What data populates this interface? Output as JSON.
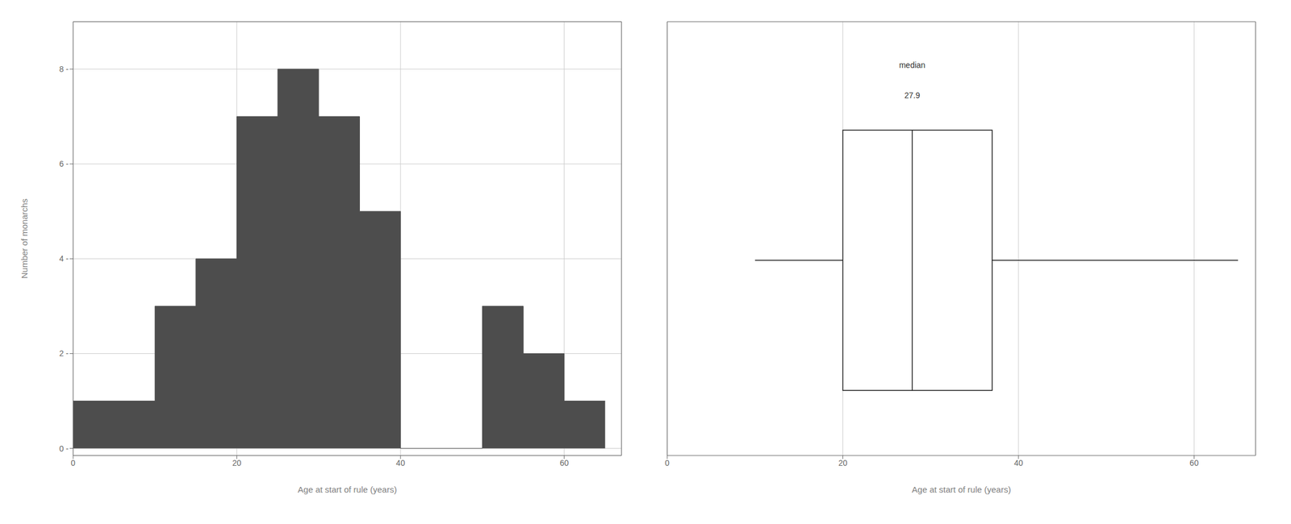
{
  "chart_data": [
    {
      "type": "histogram",
      "bins": [
        0,
        10,
        15,
        20,
        25,
        30,
        35,
        40,
        50,
        55,
        60,
        65
      ],
      "values": [
        1,
        3,
        4,
        7,
        8,
        7,
        5,
        0,
        3,
        2,
        1
      ],
      "color": "#4d4d4d",
      "xlim": [
        0,
        67
      ],
      "ylim": [
        -0.15,
        9
      ],
      "xticks": [
        0,
        20,
        40,
        60
      ],
      "yticks": [
        {
          "value": 0,
          "label": "0 -"
        },
        {
          "value": 2,
          "label": "2 -"
        },
        {
          "value": 4,
          "label": "4 -"
        },
        {
          "value": 6,
          "label": "6 -"
        },
        {
          "value": 8,
          "label": "8 -"
        }
      ],
      "x_label": "Age at start of rule (years)",
      "y_label": "Number of monarchs",
      "grid": true
    },
    {
      "type": "box",
      "whisker_low": 10,
      "q1": 20,
      "median": 27.9,
      "q3": 37,
      "whisker_high": 65,
      "color": "#ffffff",
      "xlim": [
        0,
        67
      ],
      "xticks": [
        0,
        20,
        40,
        60
      ],
      "x_label": "Age at start of rule (years)",
      "annotation": "median",
      "data_labels": true,
      "tick_labels": "x",
      "grid": true
    }
  ]
}
